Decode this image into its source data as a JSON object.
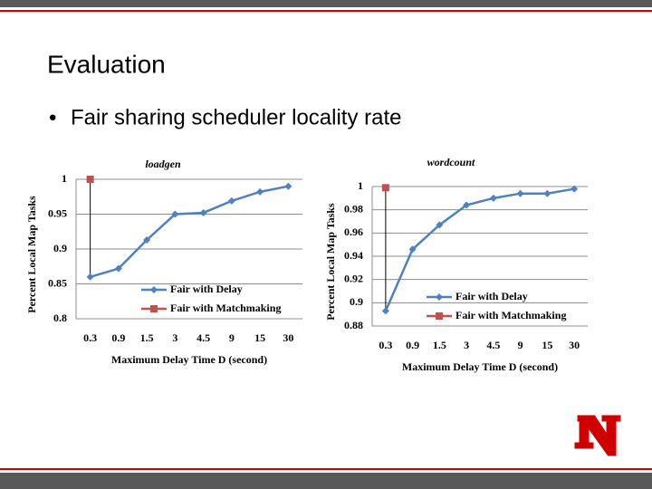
{
  "slide_title": "Evaluation",
  "bullet": "Fair sharing scheduler locality rate",
  "chart_data": [
    {
      "type": "line",
      "title": "loadgen",
      "x_label": "Maximum Delay Time D (second)",
      "y_label": "Percent  Local  Map Tasks",
      "categories": [
        "0.3",
        "0.9",
        "1.5",
        "3",
        "4.5",
        "9",
        "15",
        "30"
      ],
      "series": [
        {
          "name": "Fair with Delay",
          "color": "#4f81bd",
          "marker": "diamond",
          "values": [
            0.86,
            0.872,
            0.913,
            0.95,
            0.952,
            0.969,
            0.982,
            0.99
          ]
        },
        {
          "name": "Fair with Matchmaking",
          "color": "#c0504d",
          "marker": "square",
          "values": [
            1,
            null,
            null,
            null,
            null,
            null,
            null,
            null
          ]
        }
      ],
      "ylim": [
        0.8,
        1
      ],
      "yticks": [
        0.8,
        0.85,
        0.9,
        0.95,
        1
      ],
      "grid": true,
      "legend": "lower right"
    },
    {
      "type": "line",
      "title": "wordcount",
      "x_label": "Maximum Delay Time D (second)",
      "y_label": "Percent Local Map Tasks",
      "categories": [
        "0.3",
        "0.9",
        "1.5",
        "3",
        "4.5",
        "9",
        "15",
        "30"
      ],
      "series": [
        {
          "name": "Fair with Delay",
          "color": "#4f81bd",
          "marker": "diamond",
          "values": [
            0.893,
            0.946,
            0.967,
            0.984,
            0.99,
            0.994,
            0.994,
            0.998
          ]
        },
        {
          "name": "Fair with Matchmaking",
          "color": "#c0504d",
          "marker": "square",
          "values": [
            0.999,
            null,
            null,
            null,
            null,
            null,
            null,
            null
          ]
        }
      ],
      "ylim": [
        0.88,
        1
      ],
      "yticks": [
        0.88,
        0.9,
        0.92,
        0.94,
        0.96,
        0.98,
        1
      ],
      "grid": true,
      "legend": "lower right"
    }
  ]
}
